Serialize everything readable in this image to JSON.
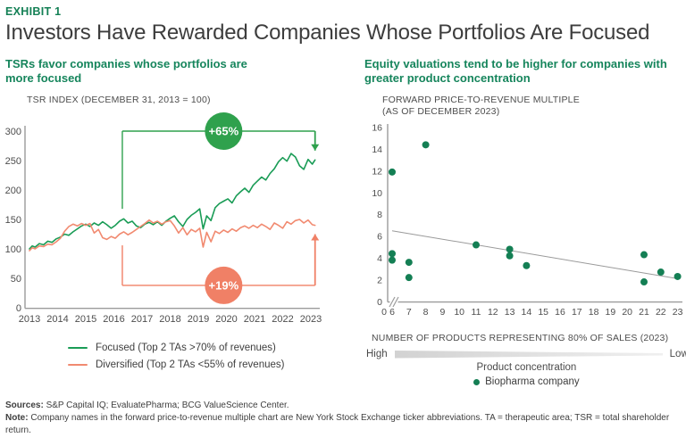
{
  "header": {
    "exhibit_label": "EXHIBIT 1",
    "title": "Investors Have Rewarded Companies Whose Portfolios Are Focused"
  },
  "colors": {
    "heading_green": "#148055",
    "subtitle_green": "#16855C",
    "focused_line": "#1A9C56",
    "diversified_line": "#F18A70",
    "green_badge": "#2FA14D",
    "salmon_badge": "#F08066",
    "scatter_dot": "#147F54",
    "axis_gray": "#9b9b9b",
    "trend_gray": "#9a9a9a"
  },
  "left_panel": {
    "subtitle": "TSRs favor companies whose portfolios are more focused",
    "axis_title": "TSR INDEX (DECEMBER 31, 2013 = 100)",
    "legend": [
      {
        "label": "Focused (Top 2 TAs >70% of revenues)",
        "color": "#1A9C56"
      },
      {
        "label": "Diversified (Top 2 TAs <55% of revenues)",
        "color": "#F18A70"
      }
    ]
  },
  "right_panel": {
    "subtitle": "Equity valuations tend to be higher for companies with greater product concentration",
    "axis_title_line1": "FORWARD PRICE-TO-REVENUE MULTIPLE",
    "axis_title_line2": "(AS OF DECEMBER 2023)",
    "xlabel": "NUMBER OF PRODUCTS REPRESENTING 80% OF SALES (2023)",
    "scale": {
      "left_label": "High",
      "right_label": "Low",
      "caption": "Product concentration"
    },
    "legend_label": "Biopharma company"
  },
  "footer": {
    "sources_label": "Sources:",
    "sources_text": " S&P Capital IQ; EvaluatePharma; BCG ValueScience Center.",
    "note_label": "Note:",
    "note_text": " Company names in the forward price-to-revenue multiple chart are New York Stock Exchange ticker abbreviations. TA = therapeutic area; TSR = total shareholder return."
  },
  "chart_data": [
    {
      "type": "line",
      "title": "TSR INDEX (DECEMBER 31, 2013 = 100)",
      "x_tick_labels": [
        "2013",
        "2014",
        "2015",
        "2016",
        "2017",
        "2018",
        "2019",
        "2020",
        "2021",
        "2022",
        "2023"
      ],
      "ylim": [
        0,
        300
      ],
      "y_ticks": [
        0,
        50,
        100,
        150,
        200,
        250,
        300
      ],
      "grid": false,
      "legend_position": "bottom",
      "series": [
        {
          "name": "Focused (Top 2 TAs >70% of revenues)",
          "color": "#1A9C56",
          "points": [
            [
              2013,
              100
            ],
            [
              2013.1,
              105
            ],
            [
              2013.2,
              103
            ],
            [
              2013.35,
              109
            ],
            [
              2013.5,
              107
            ],
            [
              2013.65,
              113
            ],
            [
              2013.8,
              111
            ],
            [
              2013.95,
              117
            ],
            [
              2014.1,
              120
            ],
            [
              2014.25,
              125
            ],
            [
              2014.4,
              123
            ],
            [
              2014.55,
              129
            ],
            [
              2014.7,
              134
            ],
            [
              2014.85,
              139
            ],
            [
              2015,
              142
            ],
            [
              2015.15,
              138
            ],
            [
              2015.3,
              144
            ],
            [
              2015.45,
              140
            ],
            [
              2015.6,
              146
            ],
            [
              2015.75,
              141
            ],
            [
              2015.9,
              135
            ],
            [
              2016.05,
              140
            ],
            [
              2016.2,
              147
            ],
            [
              2016.35,
              151
            ],
            [
              2016.5,
              144
            ],
            [
              2016.65,
              147
            ],
            [
              2016.8,
              139
            ],
            [
              2016.95,
              136
            ],
            [
              2017.1,
              142
            ],
            [
              2017.25,
              145
            ],
            [
              2017.4,
              141
            ],
            [
              2017.55,
              146
            ],
            [
              2017.7,
              140
            ],
            [
              2017.85,
              147
            ],
            [
              2018,
              152
            ],
            [
              2018.15,
              156
            ],
            [
              2018.3,
              146
            ],
            [
              2018.45,
              138
            ],
            [
              2018.6,
              150
            ],
            [
              2018.75,
              157
            ],
            [
              2018.9,
              162
            ],
            [
              2019.05,
              168
            ],
            [
              2019.17,
              134
            ],
            [
              2019.3,
              156
            ],
            [
              2019.45,
              148
            ],
            [
              2019.6,
              170
            ],
            [
              2019.75,
              177
            ],
            [
              2019.9,
              181
            ],
            [
              2020.05,
              185
            ],
            [
              2020.2,
              178
            ],
            [
              2020.35,
              190
            ],
            [
              2020.5,
              197
            ],
            [
              2020.65,
              203
            ],
            [
              2020.8,
              196
            ],
            [
              2020.95,
              208
            ],
            [
              2021.1,
              215
            ],
            [
              2021.25,
              222
            ],
            [
              2021.4,
              217
            ],
            [
              2021.55,
              228
            ],
            [
              2021.7,
              236
            ],
            [
              2021.85,
              248
            ],
            [
              2022,
              255
            ],
            [
              2022.15,
              249
            ],
            [
              2022.3,
              262
            ],
            [
              2022.45,
              256
            ],
            [
              2022.6,
              241
            ],
            [
              2022.75,
              235
            ],
            [
              2022.9,
              252
            ],
            [
              2023.05,
              244
            ],
            [
              2023.15,
              251
            ]
          ]
        },
        {
          "name": "Diversified (Top 2 TAs <55% of revenues)",
          "color": "#F18A70",
          "points": [
            [
              2013,
              97
            ],
            [
              2013.1,
              102
            ],
            [
              2013.2,
              100
            ],
            [
              2013.35,
              105
            ],
            [
              2013.5,
              104
            ],
            [
              2013.65,
              108
            ],
            [
              2013.8,
              107
            ],
            [
              2013.95,
              112
            ],
            [
              2014.1,
              118
            ],
            [
              2014.25,
              130
            ],
            [
              2014.4,
              138
            ],
            [
              2014.55,
              142
            ],
            [
              2014.7,
              139
            ],
            [
              2014.85,
              143
            ],
            [
              2015,
              140
            ],
            [
              2015.15,
              143
            ],
            [
              2015.3,
              127
            ],
            [
              2015.45,
              133
            ],
            [
              2015.6,
              119
            ],
            [
              2015.75,
              116
            ],
            [
              2015.9,
              121
            ],
            [
              2016.05,
              118
            ],
            [
              2016.2,
              125
            ],
            [
              2016.35,
              129
            ],
            [
              2016.5,
              124
            ],
            [
              2016.65,
              128
            ],
            [
              2016.8,
              133
            ],
            [
              2016.95,
              138
            ],
            [
              2017.1,
              143
            ],
            [
              2017.25,
              149
            ],
            [
              2017.4,
              144
            ],
            [
              2017.55,
              147
            ],
            [
              2017.7,
              142
            ],
            [
              2017.85,
              146
            ],
            [
              2018,
              148
            ],
            [
              2018.15,
              139
            ],
            [
              2018.3,
              127
            ],
            [
              2018.45,
              136
            ],
            [
              2018.6,
              124
            ],
            [
              2018.75,
              133
            ],
            [
              2018.9,
              129
            ],
            [
              2019.05,
              135
            ],
            [
              2019.17,
              103
            ],
            [
              2019.3,
              128
            ],
            [
              2019.45,
              112
            ],
            [
              2019.6,
              130
            ],
            [
              2019.75,
              126
            ],
            [
              2019.9,
              132
            ],
            [
              2020.05,
              128
            ],
            [
              2020.2,
              134
            ],
            [
              2020.35,
              130
            ],
            [
              2020.5,
              136
            ],
            [
              2020.65,
              139
            ],
            [
              2020.8,
              135
            ],
            [
              2020.95,
              140
            ],
            [
              2021.1,
              136
            ],
            [
              2021.25,
              142
            ],
            [
              2021.4,
              138
            ],
            [
              2021.55,
              133
            ],
            [
              2021.7,
              144
            ],
            [
              2021.85,
              140
            ],
            [
              2022,
              135
            ],
            [
              2022.15,
              146
            ],
            [
              2022.3,
              142
            ],
            [
              2022.45,
              148
            ],
            [
              2022.6,
              150
            ],
            [
              2022.75,
              144
            ],
            [
              2022.9,
              149
            ],
            [
              2023.05,
              141
            ],
            [
              2023.15,
              140
            ]
          ]
        }
      ],
      "annotations": [
        {
          "label": "+65%",
          "color": "#2FA14D",
          "from_x": 2016.3,
          "to_x": 2023.15,
          "bracket_value": 300,
          "stem_value": 168,
          "arrow_value": 267,
          "label_x": 2019.9
        },
        {
          "label": "+19%",
          "color": "#F08066",
          "from_x": 2016.3,
          "to_x": 2023.15,
          "bracket_value": 38,
          "stem_value": 106,
          "arrow_value": 125,
          "label_x": 2019.9
        }
      ]
    },
    {
      "type": "scatter",
      "title": "FORWARD PRICE-TO-REVENUE MULTIPLE (AS OF DECEMBER 2023)",
      "xlabel": "NUMBER OF PRODUCTS REPRESENTING 80% OF SALES (2023)",
      "x_ticks": [
        0,
        6,
        7,
        8,
        9,
        10,
        11,
        12,
        13,
        14,
        15,
        16,
        17,
        18,
        19,
        20,
        21,
        22,
        23
      ],
      "axis_break_between_0_and_6": true,
      "ylim": [
        0,
        16
      ],
      "y_ticks": [
        0,
        2,
        4,
        6,
        8,
        10,
        12,
        14,
        16
      ],
      "grid": false,
      "point_color": "#147F54",
      "points": [
        [
          6,
          11.9
        ],
        [
          6,
          4.4
        ],
        [
          6,
          3.8
        ],
        [
          7,
          3.6
        ],
        [
          7,
          2.2
        ],
        [
          8,
          14.4
        ],
        [
          11,
          5.2
        ],
        [
          13,
          4.8
        ],
        [
          13,
          4.2
        ],
        [
          14,
          3.3
        ],
        [
          21,
          4.3
        ],
        [
          21,
          1.8
        ],
        [
          22,
          2.7
        ],
        [
          23,
          2.3
        ]
      ],
      "trend_line": {
        "x1": 6,
        "y1": 6.5,
        "x2": 23,
        "y2": 2.1,
        "color": "#9a9a9a"
      },
      "legend_label": "Biopharma company",
      "concentration_scale": {
        "left": "High",
        "right": "Low",
        "caption": "Product concentration"
      }
    }
  ]
}
